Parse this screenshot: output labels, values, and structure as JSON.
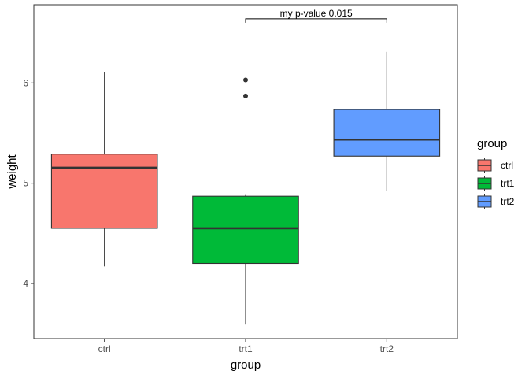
{
  "chart_data": {
    "type": "boxplot",
    "xlabel": "group",
    "ylabel": "weight",
    "ylim": [
      3.45,
      6.78
    ],
    "yticks": [
      4,
      5,
      6
    ],
    "ytick_labels": [
      "4",
      "5",
      "6"
    ],
    "categories": [
      "ctrl",
      "trt1",
      "trt2"
    ],
    "grid": false,
    "boxes": [
      {
        "category": "ctrl",
        "fill": "#F8766D",
        "whisker_low": 4.17,
        "q1": 4.55,
        "median": 5.155,
        "q3": 5.29,
        "whisker_high": 6.11,
        "outliers": []
      },
      {
        "category": "trt1",
        "fill": "#00BA38",
        "whisker_low": 3.59,
        "q1": 4.2,
        "median": 4.55,
        "q3": 4.87,
        "whisker_high": 4.89,
        "outliers": [
          5.87,
          6.03
        ]
      },
      {
        "category": "trt2",
        "fill": "#619CFF",
        "whisker_low": 4.92,
        "q1": 5.27,
        "median": 5.435,
        "q3": 5.735,
        "whisker_high": 6.31,
        "outliers": []
      }
    ],
    "annotation": {
      "text": "my p-value 0.015",
      "from": "trt1",
      "to": "trt2",
      "bracket_y": 6.64,
      "tip_y": 6.6
    },
    "legend": {
      "title": "group",
      "position": "right",
      "items": [
        {
          "label": "ctrl",
          "color": "#F8766D"
        },
        {
          "label": "trt1",
          "color": "#00BA38"
        },
        {
          "label": "trt2",
          "color": "#619CFF"
        }
      ]
    }
  }
}
